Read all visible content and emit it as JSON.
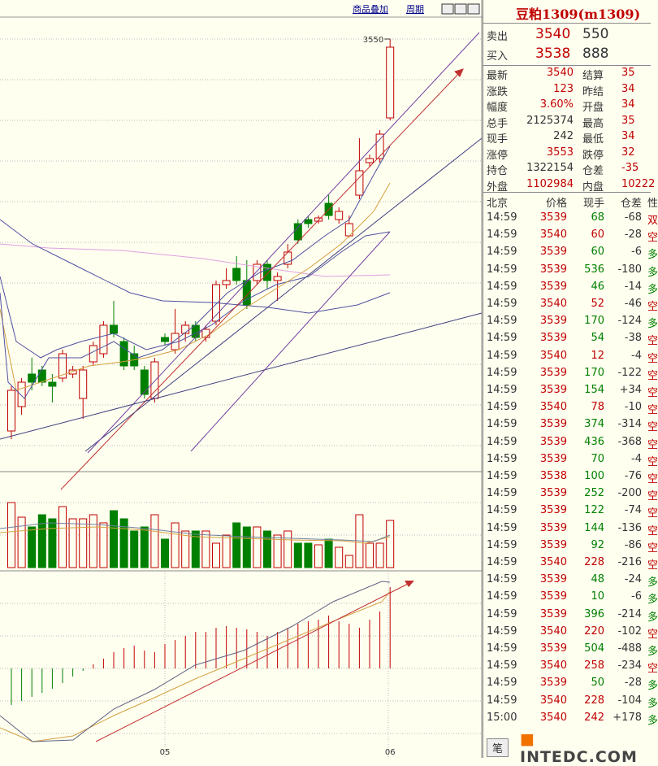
{
  "toolbar": {
    "overlay": "商品叠加",
    "period": "周期"
  },
  "chart_data": {
    "type": "candlestick",
    "categories": [
      null,
      null,
      null,
      null,
      null,
      null,
      null,
      null,
      null,
      null,
      null,
      null,
      null,
      null,
      null,
      "05",
      null,
      null,
      null,
      null,
      null,
      null,
      null,
      null,
      null,
      null,
      null,
      null,
      null,
      null,
      null,
      null,
      null,
      null,
      null,
      null,
      null,
      "06"
    ],
    "open": [
      3068,
      3098,
      3138,
      3143,
      3128,
      3133,
      3138,
      3108,
      3153,
      3163,
      3198,
      3178,
      3163,
      3143,
      3108,
      3183,
      3168,
      3188,
      3198,
      3183,
      3203,
      3248,
      3268,
      3253,
      3253,
      3273,
      3253,
      3273,
      3323,
      3328,
      3326,
      3348,
      3328,
      3308,
      3358,
      3398,
      3403,
      3453
    ],
    "high": [
      3123,
      3133,
      3158,
      3148,
      3138,
      3168,
      3148,
      3148,
      3178,
      3203,
      3228,
      3183,
      3173,
      3148,
      3158,
      3188,
      3218,
      3203,
      3203,
      3198,
      3253,
      3268,
      3283,
      3278,
      3278,
      3278,
      3263,
      3298,
      3328,
      3333,
      3333,
      3358,
      3343,
      3333,
      3428,
      3408,
      3438,
      3550
    ],
    "low": [
      3058,
      3088,
      3118,
      3123,
      3103,
      3128,
      3133,
      3083,
      3148,
      3158,
      3183,
      3143,
      3143,
      3108,
      3103,
      3173,
      3163,
      3178,
      3178,
      3178,
      3198,
      3243,
      3248,
      3218,
      3248,
      3243,
      3228,
      3268,
      3298,
      3318,
      3323,
      3328,
      3323,
      3306,
      3353,
      3393,
      3398,
      3450
    ],
    "close": [
      3118,
      3128,
      3128,
      3128,
      3123,
      3163,
      3143,
      3143,
      3173,
      3198,
      3188,
      3148,
      3148,
      3113,
      3153,
      3178,
      3188,
      3198,
      3183,
      3193,
      3248,
      3253,
      3253,
      3223,
      3273,
      3253,
      3258,
      3288,
      3303,
      3323,
      3330,
      3333,
      3338,
      3323,
      3388,
      3403,
      3433,
      3540
    ],
    "ylim": [
      3018,
      3576
    ],
    "up_color": "#c00000",
    "down_color": "#008000",
    "volume": {
      "values": [
        80,
        62,
        50,
        65,
        60,
        75,
        60,
        60,
        65,
        55,
        70,
        60,
        45,
        50,
        65,
        35,
        55,
        45,
        45,
        45,
        30,
        40,
        55,
        50,
        50,
        45,
        40,
        45,
        30,
        30,
        28,
        35,
        25,
        15,
        65,
        30,
        30,
        58
      ],
      "ylim": [
        0,
        100
      ]
    },
    "macd": {
      "values": [
        -45,
        -40,
        -35,
        -30,
        -25,
        -18,
        -10,
        -3,
        5,
        12,
        20,
        25,
        28,
        22,
        20,
        30,
        35,
        40,
        45,
        45,
        50,
        52,
        50,
        48,
        45,
        40,
        45,
        50,
        55,
        58,
        60,
        65,
        58,
        55,
        50,
        60,
        70,
        100
      ],
      "ylim": [
        -110,
        120
      ]
    }
  },
  "quote": {
    "title": "豆粕1309(m1309)",
    "ask": {
      "label": "卖出",
      "price": "3540",
      "size": "550"
    },
    "bid": {
      "label": "买入",
      "price": "3538",
      "size": "888"
    },
    "stats": [
      [
        "最新",
        "3540",
        "结算",
        "35"
      ],
      [
        "涨跌",
        "123",
        "昨结",
        "34"
      ],
      [
        "幅度",
        "3.60%",
        "开盘",
        "34"
      ],
      [
        "总手",
        "2125374",
        "最高",
        "35"
      ],
      [
        "现手",
        "242",
        "最低",
        "34"
      ],
      [
        "涨停",
        "3553",
        "跌停",
        "32"
      ],
      [
        "持仓",
        "1322154",
        "仓差",
        "-35"
      ],
      [
        "外盘",
        "1102984",
        "内盘",
        "10222"
      ]
    ]
  },
  "trades": {
    "header": [
      "北京",
      "价格",
      "现手",
      "仓差",
      "性"
    ],
    "rows": [
      [
        "14:59",
        "3539",
        "68",
        "-68",
        "双"
      ],
      [
        "14:59",
        "3540",
        "60",
        "-28",
        "空"
      ],
      [
        "14:59",
        "3539",
        "60",
        "-6",
        "多"
      ],
      [
        "14:59",
        "3539",
        "536",
        "-180",
        "多"
      ],
      [
        "14:59",
        "3539",
        "46",
        "-14",
        "多"
      ],
      [
        "14:59",
        "3540",
        "52",
        "-46",
        "空"
      ],
      [
        "14:59",
        "3539",
        "170",
        "-124",
        "多"
      ],
      [
        "14:59",
        "3539",
        "54",
        "-38",
        "空"
      ],
      [
        "14:59",
        "3540",
        "12",
        "-4",
        "空"
      ],
      [
        "14:59",
        "3539",
        "170",
        "-122",
        "空"
      ],
      [
        "14:59",
        "3539",
        "154",
        "+34",
        "空"
      ],
      [
        "14:59",
        "3540",
        "78",
        "-10",
        "空"
      ],
      [
        "14:59",
        "3539",
        "374",
        "-314",
        "空"
      ],
      [
        "14:59",
        "3539",
        "436",
        "-368",
        "空"
      ],
      [
        "14:59",
        "3539",
        "70",
        "-4",
        "空"
      ],
      [
        "14:59",
        "3538",
        "100",
        "-76",
        "空"
      ],
      [
        "14:59",
        "3539",
        "252",
        "-200",
        "空"
      ],
      [
        "14:59",
        "3539",
        "122",
        "-74",
        "空"
      ],
      [
        "14:59",
        "3539",
        "144",
        "-136",
        "空"
      ],
      [
        "14:59",
        "3539",
        "92",
        "-86",
        "空"
      ],
      [
        "14:59",
        "3540",
        "228",
        "-216",
        "空"
      ],
      [
        "14:59",
        "3539",
        "48",
        "-24",
        "多"
      ],
      [
        "14:59",
        "3539",
        "10",
        "-6",
        "多"
      ],
      [
        "14:59",
        "3539",
        "396",
        "-214",
        "多"
      ],
      [
        "14:59",
        "3540",
        "220",
        "-102",
        "空"
      ],
      [
        "14:59",
        "3539",
        "504",
        "-488",
        "多"
      ],
      [
        "14:59",
        "3540",
        "258",
        "-234",
        "空"
      ],
      [
        "14:59",
        "3539",
        "50",
        "-28",
        "多"
      ],
      [
        "14:59",
        "3540",
        "228",
        "-104",
        "多"
      ],
      [
        "15:00",
        "3540",
        "242",
        "+178",
        "多"
      ]
    ]
  },
  "tab": "笔",
  "watermark": "INTEDC.COM"
}
